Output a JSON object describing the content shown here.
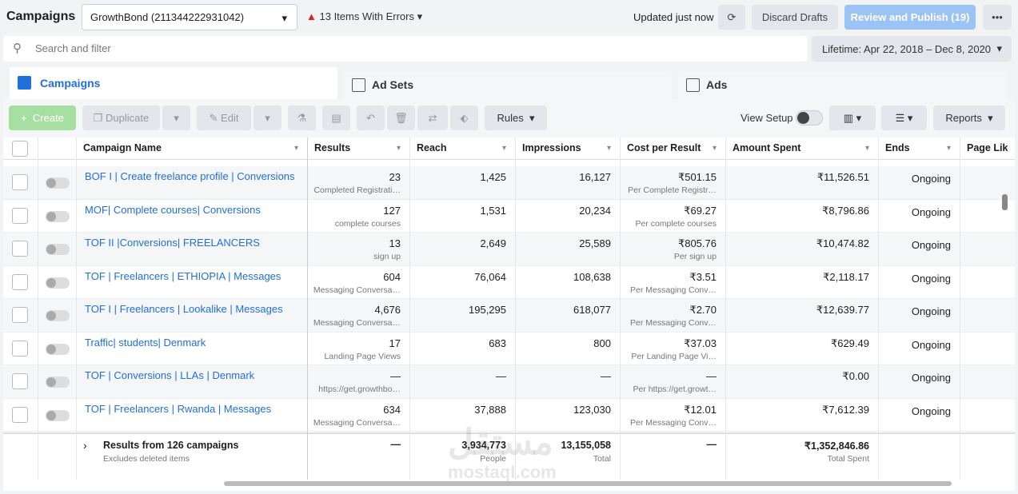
{
  "header": {
    "title": "Campaigns",
    "account": "GrowthBond (211344222931042)",
    "errors": "13 Items With Errors",
    "updated": "Updated just now",
    "discard": "Discard Drafts",
    "publish": "Review and Publish (19)"
  },
  "search": {
    "placeholder": "Search and filter",
    "date_range": "Lifetime: Apr 22, 2018 – Dec 8, 2020"
  },
  "tabs": [
    "Campaigns",
    "Ad Sets",
    "Ads"
  ],
  "toolbar": {
    "create": "Create",
    "duplicate": "Duplicate",
    "edit": "Edit",
    "rules": "Rules",
    "view_setup": "View Setup",
    "reports": "Reports"
  },
  "table": {
    "columns": [
      "Campaign Name",
      "Results",
      "Reach",
      "Impressions",
      "Cost per Result",
      "Amount Spent",
      "Ends",
      "Page Like"
    ],
    "rows": [
      [
        "BOF I | Create freelance profile | Conversions",
        "23",
        "Completed Registrati…",
        "1,425",
        "16,127",
        "₹501.15",
        "Per Complete Registr…",
        "₹11,526.51",
        "Ongoing"
      ],
      [
        "MOF| Complete courses| Conversions",
        "127",
        "complete courses",
        "1,531",
        "20,234",
        "₹69.27",
        "Per complete courses",
        "₹8,796.86",
        "Ongoing"
      ],
      [
        "TOF II |Conversions| FREELANCERS",
        "13",
        "sign up",
        "2,649",
        "25,589",
        "₹805.76",
        "Per sign up",
        "₹10,474.82",
        "Ongoing"
      ],
      [
        "TOF | Freelancers | ETHIOPIA | Messages",
        "604",
        "Messaging Conversa…",
        "76,064",
        "108,638",
        "₹3.51",
        "Per Messaging Conv…",
        "₹2,118.17",
        "Ongoing"
      ],
      [
        "TOF I | Freelancers | Lookalike | Messages",
        "4,676",
        "Messaging Conversa…",
        "195,295",
        "618,077",
        "₹2.70",
        "Per Messaging Conv…",
        "₹12,639.77",
        "Ongoing"
      ],
      [
        "Traffic| students| Denmark",
        "17",
        "Landing Page Views",
        "683",
        "800",
        "₹37.03",
        "Per Landing Page Vi…",
        "₹629.49",
        "Ongoing"
      ],
      [
        "TOF | Conversions | LLAs | Denmark",
        "—",
        "https://get.growthbo…",
        "—",
        "—",
        "—",
        "Per https://get.growt…",
        "₹0.00",
        "Ongoing"
      ],
      [
        "TOF | Freelancers | Rwanda | Messages",
        "634",
        "Messaging Conversa…",
        "37,888",
        "123,030",
        "₹12.01",
        "Per Messaging Conv…",
        "₹7,612.39",
        "Ongoing"
      ]
    ],
    "footer": {
      "label": "Results from 126 campaigns",
      "sub": "Excludes deleted items",
      "results": "—",
      "reach": "3,934,773",
      "reach_sub": "People",
      "impressions": "13,155,058",
      "impressions_sub": "Total",
      "cost": "—",
      "spent": "₹1,352,846.86",
      "spent_sub": "Total Spent"
    }
  },
  "watermark": [
    "مستقل",
    "mostaql.com"
  ]
}
